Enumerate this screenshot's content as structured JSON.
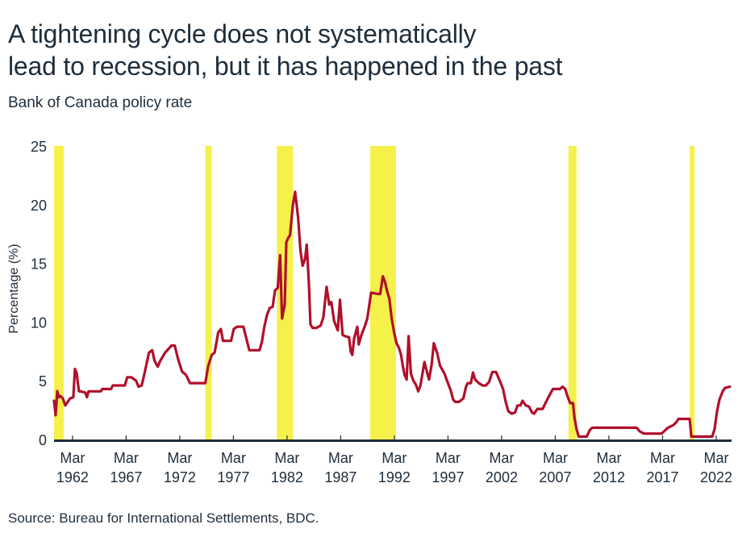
{
  "header": {
    "title_line1": "A tightening cycle does not systematically",
    "title_line2": "lead to recession, but it has happened in the past",
    "subtitle": "Bank of Canada policy rate"
  },
  "footer": {
    "source": "Source: Bureau for International Settlements, BDC."
  },
  "colors": {
    "line": "#b0102a",
    "recession_band": "#f5f04a",
    "axis": "#1f2d3a",
    "text": "#1f2d3a"
  },
  "chart_data": {
    "type": "line",
    "title": "A tightening cycle does not systematically lead to recession, but it has happened in the past",
    "subtitle": "Bank of Canada policy rate",
    "xlabel": "",
    "ylabel": "Percentage (%)",
    "ylim": [
      0,
      25
    ],
    "xlim": [
      1960.45,
      2023.6
    ],
    "grid": false,
    "y_ticks": [
      0,
      5,
      10,
      15,
      20,
      25
    ],
    "x_ticks": [
      {
        "value": 1962.17,
        "line1": "Mar",
        "line2": "1962"
      },
      {
        "value": 1967.17,
        "line1": "Mar",
        "line2": "1967"
      },
      {
        "value": 1972.17,
        "line1": "Mar",
        "line2": "1972"
      },
      {
        "value": 1977.17,
        "line1": "Mar",
        "line2": "1977"
      },
      {
        "value": 1982.17,
        "line1": "Mar",
        "line2": "1982"
      },
      {
        "value": 1987.17,
        "line1": "Mar",
        "line2": "1987"
      },
      {
        "value": 1992.17,
        "line1": "Mar",
        "line2": "1992"
      },
      {
        "value": 1997.17,
        "line1": "Mar",
        "line2": "1997"
      },
      {
        "value": 2002.17,
        "line1": "Mar",
        "line2": "2002"
      },
      {
        "value": 2007.17,
        "line1": "Mar",
        "line2": "2007"
      },
      {
        "value": 2012.17,
        "line1": "Mar",
        "line2": "2012"
      },
      {
        "value": 2017.17,
        "line1": "Mar",
        "line2": "2017"
      },
      {
        "value": 2022.17,
        "line1": "Mar",
        "line2": "2022"
      }
    ],
    "recessions": [
      {
        "start": 1960.45,
        "end": 1961.35
      },
      {
        "start": 1974.55,
        "end": 1975.15
      },
      {
        "start": 1981.22,
        "end": 1982.72
      },
      {
        "start": 1989.92,
        "end": 1992.32
      },
      {
        "start": 2008.4,
        "end": 2009.15
      },
      {
        "start": 2019.7,
        "end": 2020.15
      }
    ],
    "series": [
      {
        "name": "Bank of Canada policy rate",
        "points": [
          [
            1960.45,
            3.3
          ],
          [
            1960.6,
            2.06
          ],
          [
            1960.75,
            4.12
          ],
          [
            1960.9,
            3.6
          ],
          [
            1961.05,
            3.7
          ],
          [
            1961.27,
            3.5
          ],
          [
            1961.5,
            2.9
          ],
          [
            1961.72,
            3.2
          ],
          [
            1961.95,
            3.5
          ],
          [
            1962.25,
            3.6
          ],
          [
            1962.4,
            6.0
          ],
          [
            1962.55,
            5.7
          ],
          [
            1962.77,
            4.1
          ],
          [
            1962.92,
            4.1
          ],
          [
            1963.37,
            4.0
          ],
          [
            1963.52,
            3.6
          ],
          [
            1963.67,
            4.1
          ],
          [
            1964.8,
            4.1
          ],
          [
            1964.95,
            4.3
          ],
          [
            1965.77,
            4.3
          ],
          [
            1965.92,
            4.6
          ],
          [
            1967.05,
            4.6
          ],
          [
            1967.27,
            5.3
          ],
          [
            1967.65,
            5.3
          ],
          [
            1968.1,
            5.0
          ],
          [
            1968.32,
            4.5
          ],
          [
            1968.62,
            4.6
          ],
          [
            1968.92,
            5.8
          ],
          [
            1969.3,
            7.4
          ],
          [
            1969.6,
            7.6
          ],
          [
            1969.82,
            6.7
          ],
          [
            1970.12,
            6.2
          ],
          [
            1970.35,
            6.7
          ],
          [
            1970.8,
            7.4
          ],
          [
            1971.4,
            8.0
          ],
          [
            1971.7,
            8.0
          ],
          [
            1972.0,
            6.9
          ],
          [
            1972.37,
            5.8
          ],
          [
            1972.75,
            5.5
          ],
          [
            1973.12,
            4.8
          ],
          [
            1974.55,
            4.8
          ],
          [
            1974.8,
            6.2
          ],
          [
            1975.15,
            7.2
          ],
          [
            1975.42,
            7.4
          ],
          [
            1975.75,
            9.1
          ],
          [
            1976.0,
            9.4
          ],
          [
            1976.2,
            8.4
          ],
          [
            1976.45,
            8.4
          ],
          [
            1976.95,
            8.4
          ],
          [
            1977.2,
            9.4
          ],
          [
            1977.5,
            9.6
          ],
          [
            1978.1,
            9.6
          ],
          [
            1978.4,
            8.5
          ],
          [
            1978.65,
            7.6
          ],
          [
            1979.6,
            7.6
          ],
          [
            1979.82,
            8.3
          ],
          [
            1980.05,
            9.6
          ],
          [
            1980.3,
            10.6
          ],
          [
            1980.55,
            11.2
          ],
          [
            1980.82,
            11.3
          ],
          [
            1981.05,
            12.7
          ],
          [
            1981.3,
            12.9
          ],
          [
            1981.52,
            15.7
          ],
          [
            1981.7,
            10.3
          ],
          [
            1981.95,
            11.5
          ],
          [
            1982.1,
            16.8
          ],
          [
            1982.3,
            17.2
          ],
          [
            1982.45,
            17.4
          ],
          [
            1982.7,
            19.9
          ],
          [
            1982.92,
            21.1
          ],
          [
            1983.2,
            18.9
          ],
          [
            1983.42,
            16.1
          ],
          [
            1983.62,
            14.8
          ],
          [
            1983.85,
            15.4
          ],
          [
            1984.0,
            16.6
          ],
          [
            1984.2,
            13.4
          ],
          [
            1984.35,
            9.8
          ],
          [
            1984.55,
            9.5
          ],
          [
            1984.9,
            9.5
          ],
          [
            1985.3,
            9.7
          ],
          [
            1985.55,
            10.4
          ],
          [
            1985.85,
            13.0
          ],
          [
            1986.1,
            11.5
          ],
          [
            1986.3,
            11.7
          ],
          [
            1986.55,
            10.1
          ],
          [
            1986.9,
            9.3
          ],
          [
            1987.1,
            11.9
          ],
          [
            1987.35,
            8.9
          ],
          [
            1987.6,
            8.8
          ],
          [
            1987.95,
            8.7
          ],
          [
            1988.1,
            7.5
          ],
          [
            1988.25,
            7.2
          ],
          [
            1988.42,
            8.6
          ],
          [
            1988.72,
            9.6
          ],
          [
            1988.85,
            8.1
          ],
          [
            1989.1,
            8.9
          ],
          [
            1989.4,
            9.6
          ],
          [
            1989.65,
            10.3
          ],
          [
            1990.0,
            12.5
          ],
          [
            1990.65,
            12.4
          ],
          [
            1990.85,
            12.4
          ],
          [
            1991.1,
            13.9
          ],
          [
            1991.3,
            13.4
          ],
          [
            1991.5,
            12.6
          ],
          [
            1991.7,
            12.0
          ],
          [
            1991.92,
            10.3
          ],
          [
            1992.15,
            9.1
          ],
          [
            1992.37,
            8.2
          ],
          [
            1992.6,
            7.8
          ],
          [
            1992.8,
            7.2
          ],
          [
            1992.97,
            6.2
          ],
          [
            1993.12,
            5.5
          ],
          [
            1993.32,
            5.1
          ],
          [
            1993.5,
            8.8
          ],
          [
            1993.72,
            5.6
          ],
          [
            1993.95,
            5.0
          ],
          [
            1994.17,
            4.7
          ],
          [
            1994.4,
            4.1
          ],
          [
            1994.6,
            4.6
          ],
          [
            1994.97,
            6.6
          ],
          [
            1995.2,
            5.8
          ],
          [
            1995.4,
            5.1
          ],
          [
            1995.65,
            6.4
          ],
          [
            1995.85,
            8.2
          ],
          [
            1996.15,
            7.4
          ],
          [
            1996.42,
            6.3
          ],
          [
            1996.85,
            5.6
          ],
          [
            1997.0,
            5.2
          ],
          [
            1997.25,
            4.6
          ],
          [
            1997.45,
            4.1
          ],
          [
            1997.65,
            3.4
          ],
          [
            1997.85,
            3.2
          ],
          [
            1998.2,
            3.2
          ],
          [
            1998.6,
            3.5
          ],
          [
            1998.85,
            4.5
          ],
          [
            1999.0,
            4.8
          ],
          [
            1999.3,
            4.8
          ],
          [
            1999.5,
            5.7
          ],
          [
            1999.7,
            5.1
          ],
          [
            2000.05,
            4.8
          ],
          [
            2000.4,
            4.6
          ],
          [
            2000.7,
            4.6
          ],
          [
            2001.0,
            4.9
          ],
          [
            2001.3,
            5.75
          ],
          [
            2001.65,
            5.75
          ],
          [
            2002.0,
            5.0
          ],
          [
            2002.3,
            4.3
          ],
          [
            2002.55,
            3.2
          ],
          [
            2002.8,
            2.4
          ],
          [
            2003.12,
            2.2
          ],
          [
            2003.42,
            2.3
          ],
          [
            2003.65,
            2.9
          ],
          [
            2003.92,
            2.9
          ],
          [
            2004.12,
            3.3
          ],
          [
            2004.42,
            2.9
          ],
          [
            2004.72,
            2.8
          ],
          [
            2005.0,
            2.3
          ],
          [
            2005.2,
            2.2
          ],
          [
            2005.5,
            2.6
          ],
          [
            2006.0,
            2.6
          ],
          [
            2006.25,
            3.1
          ],
          [
            2006.65,
            3.8
          ],
          [
            2006.95,
            4.3
          ],
          [
            2007.6,
            4.3
          ],
          [
            2007.85,
            4.5
          ],
          [
            2008.1,
            4.3
          ],
          [
            2008.3,
            3.7
          ],
          [
            2008.55,
            3.1
          ],
          [
            2008.82,
            3.1
          ],
          [
            2008.97,
            1.8
          ],
          [
            2009.15,
            0.9
          ],
          [
            2009.35,
            0.25
          ],
          [
            2010.1,
            0.25
          ],
          [
            2010.4,
            0.82
          ],
          [
            2010.62,
            1.0
          ],
          [
            2014.75,
            1.0
          ],
          [
            2015.05,
            0.69
          ],
          [
            2015.42,
            0.5
          ],
          [
            2017.07,
            0.5
          ],
          [
            2017.3,
            0.69
          ],
          [
            2017.67,
            1.0
          ],
          [
            2018.2,
            1.24
          ],
          [
            2018.42,
            1.44
          ],
          [
            2018.65,
            1.75
          ],
          [
            2019.7,
            1.75
          ],
          [
            2019.85,
            0.25
          ],
          [
            2020.52,
            0.25
          ],
          [
            2021.8,
            0.25
          ],
          [
            2022.02,
            0.9
          ],
          [
            2022.25,
            2.4
          ],
          [
            2022.47,
            3.4
          ],
          [
            2022.77,
            4.1
          ],
          [
            2023.0,
            4.4
          ],
          [
            2023.45,
            4.5
          ]
        ]
      }
    ]
  }
}
